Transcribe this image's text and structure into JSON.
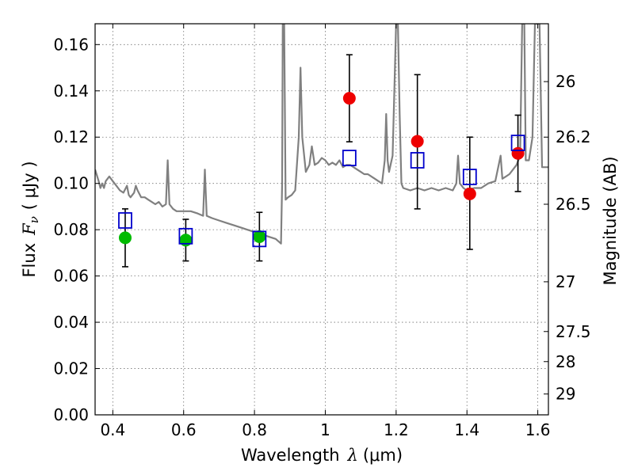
{
  "chart_data": {
    "type": "scatter",
    "title": "",
    "xlabel_prefix": "Wavelength",
    "xlabel_symbol": "λ",
    "xlabel_unit": "(μm)",
    "ylabel_prefix": "Flux",
    "ylabel_symbol": "F",
    "ylabel_subscript": "ν",
    "ylabel_unit": "( μJy )",
    "y2label": "Magnitude (AB)",
    "xlim": [
      0.35,
      1.63
    ],
    "ylim": [
      0.0,
      0.169
    ],
    "grid": true,
    "x_ticks": [
      "0.4",
      "0.6",
      "0.8",
      "1",
      "1.2",
      "1.4",
      "1.6"
    ],
    "y_ticks": [
      "0.00",
      "0.02",
      "0.04",
      "0.06",
      "0.08",
      "0.10",
      "0.12",
      "0.14",
      "0.16"
    ],
    "y2_ticks": [
      "26",
      "26.2",
      "26.5",
      "27",
      "27.5",
      "28",
      "29"
    ],
    "series": [
      {
        "marker": "circle",
        "color": "#00bb00",
        "points": [
          {
            "x": 0.435,
            "y": 0.0765,
            "yerr_low": 0.064,
            "yerr_high": 0.089
          },
          {
            "x": 0.606,
            "y": 0.0755,
            "yerr_low": 0.0665,
            "yerr_high": 0.0845
          },
          {
            "x": 0.814,
            "y": 0.077,
            "yerr_low": 0.0665,
            "yerr_high": 0.0875
          }
        ]
      },
      {
        "marker": "circle",
        "color": "#ee0000",
        "points": [
          {
            "x": 1.068,
            "y": 0.1368,
            "yerr_low": 0.118,
            "yerr_high": 0.1556
          },
          {
            "x": 1.26,
            "y": 0.1182,
            "yerr_low": 0.089,
            "yerr_high": 0.147
          },
          {
            "x": 1.408,
            "y": 0.0955,
            "yerr_low": 0.0715,
            "yerr_high": 0.12
          },
          {
            "x": 1.544,
            "y": 0.113,
            "yerr_low": 0.0965,
            "yerr_high": 0.1295
          }
        ]
      },
      {
        "marker": "square",
        "color": "#0000cc",
        "points": [
          {
            "x": 0.435,
            "y": 0.084
          },
          {
            "x": 0.606,
            "y": 0.0772
          },
          {
            "x": 0.814,
            "y": 0.076
          },
          {
            "x": 1.068,
            "y": 0.111
          },
          {
            "x": 1.26,
            "y": 0.11
          },
          {
            "x": 1.408,
            "y": 0.1028
          },
          {
            "x": 1.544,
            "y": 0.1175
          }
        ]
      }
    ],
    "model_spectrum": {
      "color": "#808080",
      "points": [
        [
          0.35,
          0.106
        ],
        [
          0.36,
          0.101
        ],
        [
          0.365,
          0.098
        ],
        [
          0.37,
          0.1
        ],
        [
          0.375,
          0.098
        ],
        [
          0.38,
          0.101
        ],
        [
          0.39,
          0.103
        ],
        [
          0.4,
          0.101
        ],
        [
          0.41,
          0.099
        ],
        [
          0.42,
          0.097
        ],
        [
          0.43,
          0.096
        ],
        [
          0.44,
          0.099
        ],
        [
          0.445,
          0.095
        ],
        [
          0.45,
          0.094
        ],
        [
          0.46,
          0.096
        ],
        [
          0.465,
          0.099
        ],
        [
          0.47,
          0.097
        ],
        [
          0.48,
          0.094
        ],
        [
          0.49,
          0.094
        ],
        [
          0.5,
          0.093
        ],
        [
          0.51,
          0.092
        ],
        [
          0.52,
          0.091
        ],
        [
          0.53,
          0.092
        ],
        [
          0.54,
          0.09
        ],
        [
          0.55,
          0.091
        ],
        [
          0.555,
          0.11
        ],
        [
          0.56,
          0.091
        ],
        [
          0.57,
          0.089
        ],
        [
          0.58,
          0.088
        ],
        [
          0.6,
          0.088
        ],
        [
          0.62,
          0.088
        ],
        [
          0.64,
          0.087
        ],
        [
          0.655,
          0.086
        ],
        [
          0.66,
          0.106
        ],
        [
          0.665,
          0.086
        ],
        [
          0.68,
          0.085
        ],
        [
          0.7,
          0.084
        ],
        [
          0.72,
          0.083
        ],
        [
          0.74,
          0.082
        ],
        [
          0.76,
          0.081
        ],
        [
          0.78,
          0.08
        ],
        [
          0.8,
          0.079
        ],
        [
          0.82,
          0.078
        ],
        [
          0.84,
          0.077
        ],
        [
          0.86,
          0.076
        ],
        [
          0.875,
          0.074
        ],
        [
          0.878,
          0.1
        ],
        [
          0.88,
          0.169
        ],
        [
          0.884,
          0.169
        ],
        [
          0.888,
          0.093
        ],
        [
          0.895,
          0.094
        ],
        [
          0.905,
          0.095
        ],
        [
          0.915,
          0.097
        ],
        [
          0.925,
          0.12
        ],
        [
          0.93,
          0.15
        ],
        [
          0.935,
          0.12
        ],
        [
          0.945,
          0.105
        ],
        [
          0.955,
          0.108
        ],
        [
          0.962,
          0.116
        ],
        [
          0.97,
          0.108
        ],
        [
          0.98,
          0.109
        ],
        [
          0.99,
          0.111
        ],
        [
          1.0,
          0.11
        ],
        [
          1.01,
          0.108
        ],
        [
          1.02,
          0.109
        ],
        [
          1.03,
          0.108
        ],
        [
          1.04,
          0.11
        ],
        [
          1.05,
          0.107
        ],
        [
          1.06,
          0.108
        ],
        [
          1.07,
          0.108
        ],
        [
          1.08,
          0.107
        ],
        [
          1.09,
          0.106
        ],
        [
          1.1,
          0.105
        ],
        [
          1.11,
          0.104
        ],
        [
          1.12,
          0.104
        ],
        [
          1.13,
          0.103
        ],
        [
          1.14,
          0.102
        ],
        [
          1.15,
          0.101
        ],
        [
          1.16,
          0.1
        ],
        [
          1.168,
          0.11
        ],
        [
          1.172,
          0.13
        ],
        [
          1.176,
          0.11
        ],
        [
          1.18,
          0.105
        ],
        [
          1.19,
          0.112
        ],
        [
          1.195,
          0.14
        ],
        [
          1.2,
          0.169
        ],
        [
          1.205,
          0.169
        ],
        [
          1.21,
          0.13
        ],
        [
          1.215,
          0.1
        ],
        [
          1.22,
          0.098
        ],
        [
          1.24,
          0.097
        ],
        [
          1.26,
          0.098
        ],
        [
          1.28,
          0.097
        ],
        [
          1.3,
          0.098
        ],
        [
          1.32,
          0.097
        ],
        [
          1.34,
          0.098
        ],
        [
          1.36,
          0.097
        ],
        [
          1.37,
          0.1
        ],
        [
          1.375,
          0.112
        ],
        [
          1.38,
          0.1
        ],
        [
          1.39,
          0.098
        ],
        [
          1.4,
          0.097
        ],
        [
          1.42,
          0.098
        ],
        [
          1.44,
          0.098
        ],
        [
          1.46,
          0.1
        ],
        [
          1.48,
          0.101
        ],
        [
          1.495,
          0.112
        ],
        [
          1.5,
          0.102
        ],
        [
          1.51,
          0.103
        ],
        [
          1.52,
          0.104
        ],
        [
          1.53,
          0.106
        ],
        [
          1.54,
          0.108
        ],
        [
          1.55,
          0.112
        ],
        [
          1.556,
          0.169
        ],
        [
          1.562,
          0.169
        ],
        [
          1.566,
          0.11
        ],
        [
          1.575,
          0.11
        ],
        [
          1.585,
          0.12
        ],
        [
          1.592,
          0.169
        ],
        [
          1.605,
          0.169
        ],
        [
          1.612,
          0.107
        ],
        [
          1.63,
          0.107
        ]
      ]
    },
    "magnitude_axis": {
      "ticks": [
        {
          "label": "26",
          "flux": 0.144
        },
        {
          "label": "26.2",
          "flux": 0.12
        },
        {
          "label": "26.5",
          "flux": 0.091
        },
        {
          "label": "27",
          "flux": 0.0575
        },
        {
          "label": "27.5",
          "flux": 0.036
        },
        {
          "label": "28",
          "flux": 0.023
        },
        {
          "label": "29",
          "flux": 0.009
        }
      ]
    }
  }
}
